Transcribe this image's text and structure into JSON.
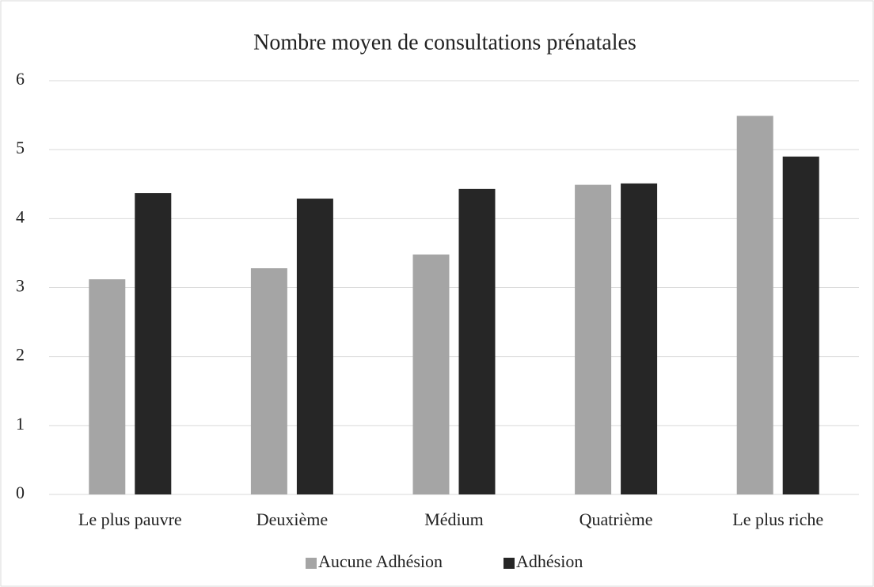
{
  "chart_data": {
    "type": "bar",
    "title": "Nombre moyen de consultations prénatales",
    "categories": [
      "Le plus pauvre",
      "Deuxième",
      "Médium",
      "Quatrième",
      "Le plus riche"
    ],
    "series": [
      {
        "name": "Aucune Adhésion",
        "color": "#a5a5a5",
        "values": [
          3.12,
          3.28,
          3.48,
          4.49,
          5.49
        ]
      },
      {
        "name": "Adhésion",
        "color": "#262626",
        "values": [
          4.37,
          4.29,
          4.43,
          4.51,
          4.9
        ]
      }
    ],
    "ylim": [
      0,
      6
    ],
    "yticks": [
      0,
      1,
      2,
      3,
      4,
      5,
      6
    ],
    "grid": true,
    "legend": "bottom"
  }
}
